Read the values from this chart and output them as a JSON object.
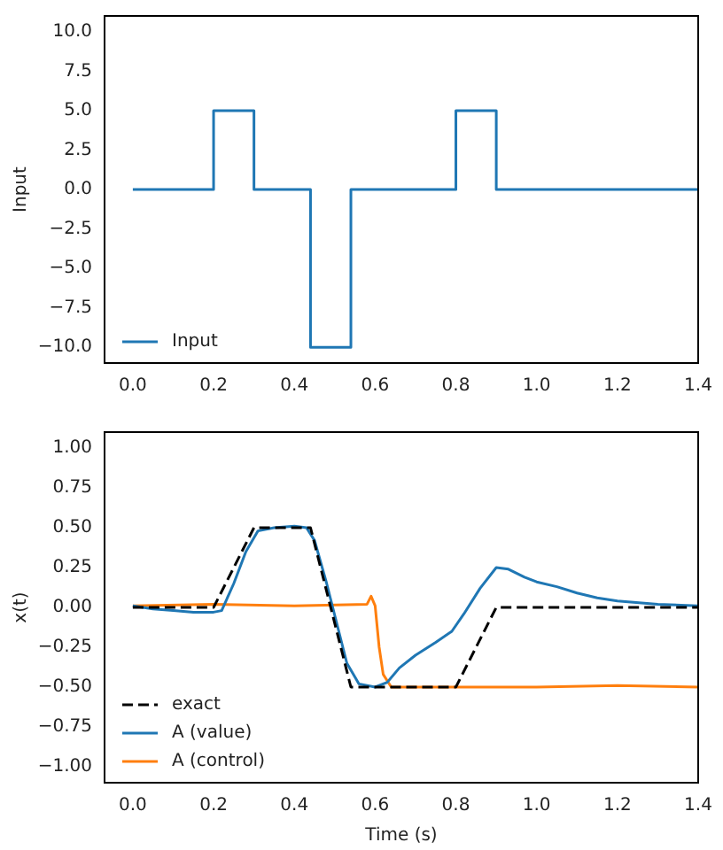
{
  "chart_data": [
    {
      "type": "step",
      "ylabel": "Input",
      "series": [
        {
          "name": "Input",
          "color": "#1f77b4",
          "x": [
            0,
            0.2,
            0.3,
            0.44,
            0.54,
            0.8,
            0.9,
            1.4
          ],
          "values": [
            0,
            5,
            0,
            -10,
            0,
            5,
            0,
            0
          ]
        }
      ],
      "xlim": [
        -0.07,
        1.4
      ],
      "ylim": [
        -11,
        11
      ],
      "xticks": [
        {
          "value": 0,
          "label": "0.0"
        },
        {
          "value": 0.2,
          "label": "0.2"
        },
        {
          "value": 0.4,
          "label": "0.4"
        },
        {
          "value": 0.6,
          "label": "0.6"
        },
        {
          "value": 0.8,
          "label": "0.8"
        },
        {
          "value": 1.0,
          "label": "1.0"
        },
        {
          "value": 1.2,
          "label": "1.2"
        },
        {
          "value": 1.4,
          "label": "1.4"
        }
      ],
      "yticks": [
        {
          "value": -10,
          "label": "−10.0"
        },
        {
          "value": -7.5,
          "label": "−7.5"
        },
        {
          "value": -5,
          "label": "−5.0"
        },
        {
          "value": -2.5,
          "label": "−2.5"
        },
        {
          "value": 0,
          "label": "0.0"
        },
        {
          "value": 2.5,
          "label": "2.5"
        },
        {
          "value": 5,
          "label": "5.0"
        },
        {
          "value": 7.5,
          "label": "7.5"
        },
        {
          "value": 10,
          "label": "10.0"
        }
      ],
      "legend": "bottom left",
      "marker": "none"
    },
    {
      "type": "line",
      "xlabel": "Time (s)",
      "ylabel": "x(t)",
      "series": [
        {
          "name": "exact",
          "color": "#000000",
          "line_style": "dashed",
          "x": [
            0,
            0.2,
            0.3,
            0.44,
            0.54,
            0.8,
            0.9,
            1.4
          ],
          "values": [
            0,
            0,
            0.5,
            0.5,
            -0.5,
            -0.5,
            0,
            0
          ]
        },
        {
          "name": "A (value)",
          "color": "#1f77b4",
          "x": [
            0,
            0.05,
            0.1,
            0.15,
            0.2,
            0.22,
            0.25,
            0.28,
            0.31,
            0.35,
            0.4,
            0.43,
            0.45,
            0.48,
            0.5,
            0.53,
            0.56,
            0.6,
            0.63,
            0.66,
            0.7,
            0.75,
            0.79,
            0.82,
            0.86,
            0.9,
            0.93,
            0.97,
            1.0,
            1.05,
            1.1,
            1.15,
            1.2,
            1.3,
            1.4
          ],
          "values": [
            0.01,
            -0.01,
            -0.02,
            -0.03,
            -0.03,
            -0.02,
            0.15,
            0.35,
            0.48,
            0.5,
            0.51,
            0.5,
            0.42,
            0.15,
            -0.05,
            -0.35,
            -0.48,
            -0.5,
            -0.47,
            -0.38,
            -0.3,
            -0.22,
            -0.15,
            -0.04,
            0.12,
            0.25,
            0.24,
            0.19,
            0.16,
            0.13,
            0.09,
            0.06,
            0.04,
            0.02,
            0.01
          ]
        },
        {
          "name": "A (control)",
          "color": "#ff7f0e",
          "x": [
            0,
            0.2,
            0.4,
            0.58,
            0.59,
            0.6,
            0.61,
            0.62,
            0.64,
            0.7,
            0.8,
            1.0,
            1.2,
            1.4
          ],
          "values": [
            0.01,
            0.02,
            0.01,
            0.02,
            0.07,
            0.01,
            -0.25,
            -0.42,
            -0.5,
            -0.5,
            -0.5,
            -0.5,
            -0.49,
            -0.5
          ]
        }
      ],
      "xlim": [
        -0.07,
        1.4
      ],
      "ylim": [
        -1.1,
        1.1
      ],
      "xticks": [
        {
          "value": 0,
          "label": "0.0"
        },
        {
          "value": 0.2,
          "label": "0.2"
        },
        {
          "value": 0.4,
          "label": "0.4"
        },
        {
          "value": 0.6,
          "label": "0.6"
        },
        {
          "value": 0.8,
          "label": "0.8"
        },
        {
          "value": 1.0,
          "label": "1.0"
        },
        {
          "value": 1.2,
          "label": "1.2"
        },
        {
          "value": 1.4,
          "label": "1.4"
        }
      ],
      "yticks": [
        {
          "value": -1,
          "label": "−1.00"
        },
        {
          "value": -0.75,
          "label": "−0.75"
        },
        {
          "value": -0.5,
          "label": "−0.50"
        },
        {
          "value": -0.25,
          "label": "−0.25"
        },
        {
          "value": 0,
          "label": "0.00"
        },
        {
          "value": 0.25,
          "label": "0.25"
        },
        {
          "value": 0.5,
          "label": "0.50"
        },
        {
          "value": 0.75,
          "label": "0.75"
        },
        {
          "value": 1,
          "label": "1.00"
        }
      ],
      "legend": "bottom left",
      "marker": "none"
    }
  ]
}
